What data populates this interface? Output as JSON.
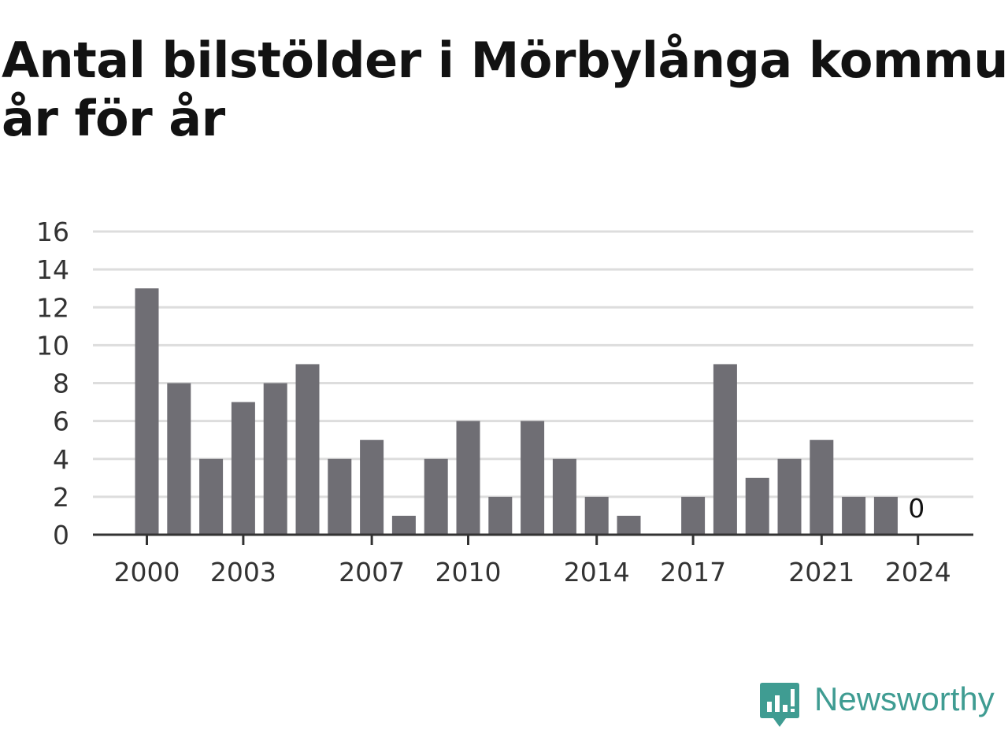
{
  "title_lines": [
    "Antal bilstölder i Mörbylånga kommun",
    "år för år"
  ],
  "brand": {
    "name": "Newsworthy",
    "color": "#3f9c92"
  },
  "colors": {
    "bar": "#6f6e74",
    "grid": "#dddddd",
    "axis": "#333333"
  },
  "chart_data": {
    "type": "bar",
    "title": "Antal bilstölder i Mörbylånga kommun år för år",
    "xlabel": "",
    "ylabel": "",
    "categories": [
      "2000",
      "2001",
      "2002",
      "2003",
      "2004",
      "2005",
      "2006",
      "2007",
      "2008",
      "2009",
      "2010",
      "2011",
      "2012",
      "2013",
      "2014",
      "2015",
      "2016",
      "2017",
      "2018",
      "2019",
      "2020",
      "2021",
      "2022",
      "2023",
      "2024"
    ],
    "values": [
      13,
      8,
      4,
      7,
      8,
      9,
      4,
      5,
      1,
      4,
      6,
      2,
      6,
      4,
      2,
      1,
      0,
      2,
      9,
      3,
      4,
      5,
      2,
      2,
      0
    ],
    "x_tick_labels": [
      "2000",
      "2003",
      "2007",
      "2010",
      "2014",
      "2017",
      "2021",
      "2024"
    ],
    "y_ticks": [
      0,
      2,
      4,
      6,
      8,
      10,
      12,
      14,
      16
    ],
    "ylim": [
      0,
      16
    ],
    "grid": true,
    "legend": "none",
    "annotations": [
      {
        "category": "2024",
        "text": "0"
      }
    ]
  }
}
